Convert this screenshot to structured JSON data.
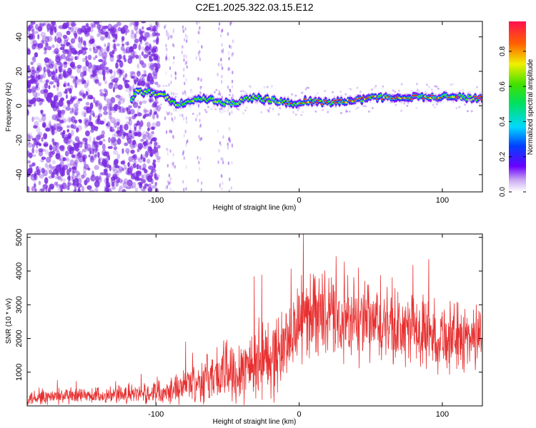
{
  "figure_title": "C2E1.2025.322.03.15.E12",
  "colors": {
    "snr_line": "#e83030",
    "spectrum_points": "#7a2be0",
    "ridge_core": "#e83030"
  },
  "chart_data": [
    {
      "type": "heatmap",
      "name": "spectrogram",
      "title": "C2E1.2025.322.03.15.E12",
      "xlabel": "Height of straight line (km)",
      "ylabel": "Frequency (Hz)",
      "xlim": [
        -190,
        128
      ],
      "ylim": [
        -50,
        49
      ],
      "xticks": [
        -100,
        0,
        100
      ],
      "yticks": [
        -40,
        -20,
        0,
        20,
        40
      ],
      "colorbar": {
        "label": "Normalized spectral amplitude",
        "range": [
          0,
          0.97
        ],
        "ticks": [
          0.0,
          0.2,
          0.4,
          0.6,
          0.8
        ]
      },
      "ridge": [
        {
          "x": -115,
          "y": 8
        },
        {
          "x": -105,
          "y": 8
        },
        {
          "x": -95,
          "y": 6
        },
        {
          "x": -85,
          "y": 1
        },
        {
          "x": -75,
          "y": 3
        },
        {
          "x": -65,
          "y": 4
        },
        {
          "x": -55,
          "y": 2
        },
        {
          "x": -45,
          "y": 1
        },
        {
          "x": -35,
          "y": 5
        },
        {
          "x": -25,
          "y": 4
        },
        {
          "x": -15,
          "y": 3
        },
        {
          "x": -5,
          "y": 1
        },
        {
          "x": 5,
          "y": 3
        },
        {
          "x": 15,
          "y": 2
        },
        {
          "x": 25,
          "y": 2
        },
        {
          "x": 35,
          "y": 3
        },
        {
          "x": 45,
          "y": 4
        },
        {
          "x": 55,
          "y": 5
        },
        {
          "x": 65,
          "y": 5
        },
        {
          "x": 75,
          "y": 5
        },
        {
          "x": 85,
          "y": 5
        },
        {
          "x": 95,
          "y": 5
        },
        {
          "x": 105,
          "y": 6
        },
        {
          "x": 115,
          "y": 5
        },
        {
          "x": 128,
          "y": 4
        }
      ]
    },
    {
      "type": "line",
      "name": "snr",
      "xlabel": "Height of straight line (km)",
      "ylabel": "SNR (10 * v/v)",
      "xlim": [
        -190,
        128
      ],
      "ylim": [
        0,
        5100
      ],
      "xticks": [
        -100,
        0,
        100
      ],
      "yticks": [
        1000,
        2000,
        3000,
        4000,
        5000
      ],
      "envelope": [
        {
          "x": -190,
          "mean": 250,
          "amp": 300
        },
        {
          "x": -150,
          "mean": 280,
          "amp": 320
        },
        {
          "x": -110,
          "mean": 350,
          "amp": 350
        },
        {
          "x": -90,
          "mean": 500,
          "amp": 500
        },
        {
          "x": -70,
          "mean": 750,
          "amp": 800
        },
        {
          "x": -50,
          "mean": 1000,
          "amp": 1200
        },
        {
          "x": -30,
          "mean": 1300,
          "amp": 1500
        },
        {
          "x": -15,
          "mean": 1500,
          "amp": 1500
        },
        {
          "x": -5,
          "mean": 2200,
          "amp": 1400
        },
        {
          "x": 10,
          "mean": 2900,
          "amp": 1600
        },
        {
          "x": 25,
          "mean": 2500,
          "amp": 1500
        },
        {
          "x": 50,
          "mean": 2400,
          "amp": 1500
        },
        {
          "x": 80,
          "mean": 2200,
          "amp": 1300
        },
        {
          "x": 110,
          "mean": 2000,
          "amp": 1300
        },
        {
          "x": 128,
          "mean": 2100,
          "amp": 1200
        }
      ]
    }
  ]
}
